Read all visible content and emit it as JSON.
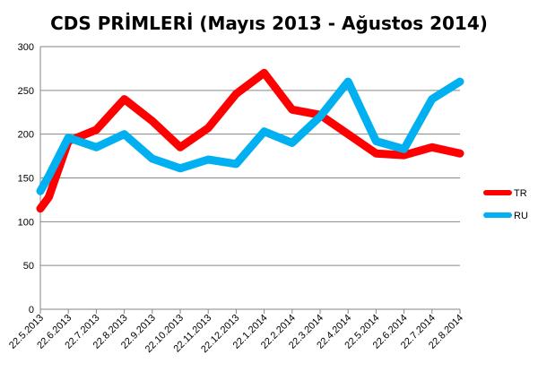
{
  "chart_data": {
    "type": "line",
    "title": "CDS PRİMLERİ (Mayıs 2013 - Ağustos 2014)",
    "xlabel": "",
    "ylabel": "",
    "ylim": [
      0,
      300
    ],
    "yticks": [
      "0",
      "50",
      "100",
      "150",
      "200",
      "250",
      "300"
    ],
    "grid": "horizontal",
    "legend": "right",
    "categories": [
      "22.5.2013",
      "22.6.2013",
      "22.7.2013",
      "22.8.2013",
      "22.9.2013",
      "22.10.2013",
      "22.11.2013",
      "22.12.2013",
      "22.1.2014",
      "22.2.2014",
      "22.3.2014",
      "22.4.2014",
      "22.5.2014",
      "22.6.2014",
      "22.7.2014",
      "22.8.2014"
    ],
    "x": [
      0.0,
      0.5,
      1.0,
      1.5,
      2.0,
      3.0,
      4.0,
      5.0,
      6.0,
      7.0,
      7.5,
      8.0,
      9.0,
      10.0,
      11.0,
      12.0,
      13.0,
      14.0,
      15.0
    ],
    "series": [
      {
        "name": "TR",
        "color": "#ff0000",
        "x": [
          0.0,
          0.3,
          1.0,
          2.0,
          3.0,
          4.0,
          5.0,
          6.0,
          7.0,
          8.0,
          9.0,
          10.0,
          11.0,
          12.0,
          13.0,
          14.0,
          15.0
        ],
        "values": [
          115,
          128,
          192,
          205,
          240,
          215,
          185,
          207,
          246,
          270,
          228,
          222,
          200,
          178,
          176,
          185,
          178
        ]
      },
      {
        "name": "RU",
        "color": "#00b0f0",
        "x": [
          0.0,
          0.3,
          1.0,
          2.0,
          3.0,
          4.0,
          5.0,
          6.0,
          7.0,
          8.0,
          9.0,
          10.0,
          11.0,
          12.0,
          13.0,
          14.0,
          15.0
        ],
        "values": [
          135,
          152,
          196,
          185,
          200,
          172,
          161,
          171,
          166,
          203,
          190,
          220,
          260,
          192,
          183,
          240,
          260
        ]
      }
    ]
  }
}
